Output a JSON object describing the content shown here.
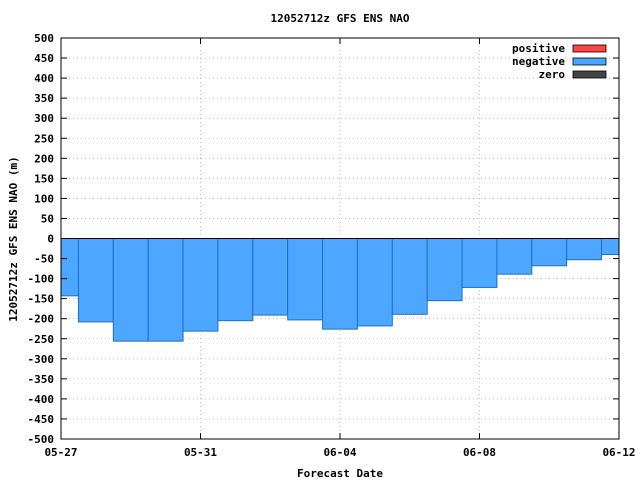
{
  "chart_data": {
    "type": "bar",
    "title": "12052712z GFS ENS NAO",
    "xlabel": "Forecast Date",
    "ylabel": "12052712z GFS ENS NAO (m)",
    "ylim": [
      -500,
      500
    ],
    "yticks": [
      500,
      450,
      400,
      350,
      300,
      250,
      200,
      150,
      100,
      50,
      0,
      -50,
      -100,
      -150,
      -200,
      -250,
      -300,
      -350,
      -400,
      -450,
      -500
    ],
    "xticks": [
      "05-27",
      "05-31",
      "06-04",
      "06-08",
      "06-12"
    ],
    "grid": true,
    "legend_position": "top-right",
    "legend": [
      {
        "label": "positive",
        "color": "#ff4444"
      },
      {
        "label": "negative",
        "color": "#4da6ff"
      },
      {
        "label": "zero",
        "color": "#444444"
      }
    ],
    "series_colors": {
      "positive": "#ff4444",
      "negative": "#4da6ff",
      "zero": "#444444"
    },
    "values": [
      -143,
      -208,
      -256,
      -256,
      -231,
      -205,
      -191,
      -203,
      -226,
      -218,
      -189,
      -155,
      -122,
      -89,
      -68,
      -53,
      -40
    ]
  }
}
